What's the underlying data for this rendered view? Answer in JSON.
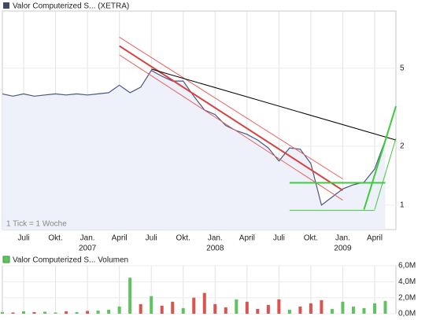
{
  "chart_data": [
    {
      "type": "line",
      "log_scale": true,
      "grid": true,
      "note": "1 Tick = 1 Woche",
      "xlim": [
        "2006-05",
        "2009-06"
      ],
      "ylim": [
        0.75,
        9.8
      ],
      "yticks": [
        1,
        2,
        5
      ],
      "xticks": [
        {
          "value": "2006-07",
          "label": "Juli"
        },
        {
          "value": "2006-10",
          "label": "Okt."
        },
        {
          "value": "2007-01",
          "label": "Jan.",
          "year": "2007"
        },
        {
          "value": "2007-04",
          "label": "April"
        },
        {
          "value": "2007-07",
          "label": "Juli"
        },
        {
          "value": "2007-10",
          "label": "Okt."
        },
        {
          "value": "2008-01",
          "label": "Jan.",
          "year": "2008"
        },
        {
          "value": "2008-04",
          "label": "April"
        },
        {
          "value": "2008-07",
          "label": "Juli"
        },
        {
          "value": "2008-10",
          "label": "Okt."
        },
        {
          "value": "2009-01",
          "label": "Jan.",
          "year": "2009"
        },
        {
          "value": "2009-04",
          "label": "April"
        }
      ],
      "x": [
        "2006-05",
        "2006-06",
        "2006-07",
        "2006-08",
        "2006-09",
        "2006-10",
        "2006-11",
        "2006-12",
        "2007-01",
        "2007-02",
        "2007-03",
        "2007-04",
        "2007-05",
        "2007-06",
        "2007-07",
        "2007-08",
        "2007-09",
        "2007-10",
        "2007-11",
        "2007-12",
        "2008-01",
        "2008-02",
        "2008-03",
        "2008-04",
        "2008-05",
        "2008-06",
        "2008-07",
        "2008-08",
        "2008-09",
        "2008-10",
        "2008-11",
        "2008-12",
        "2009-01",
        "2009-02",
        "2009-03",
        "2009-04",
        "2009-05"
      ],
      "series": [
        {
          "name": "Valor Computerized S... (XETRA)",
          "color": "#4a5680",
          "values": [
            3.7,
            3.6,
            3.7,
            3.6,
            3.65,
            3.7,
            3.65,
            3.7,
            3.65,
            3.7,
            3.75,
            4.1,
            3.75,
            4.0,
            4.87,
            4.55,
            4.3,
            4.3,
            3.6,
            3.06,
            2.9,
            2.55,
            2.4,
            2.3,
            2.15,
            1.96,
            1.68,
            1.96,
            1.93,
            1.63,
            1.0,
            1.1,
            1.21,
            1.27,
            1.31,
            1.53,
            2.15
          ]
        }
      ],
      "trendlines": [
        {
          "color": "#d94040",
          "width": 2,
          "x": [
            "2007-04",
            "2009-01"
          ],
          "values": [
            6.5,
            1.19
          ]
        },
        {
          "color": "#e86060",
          "width": 1,
          "x": [
            "2007-04",
            "2009-01"
          ],
          "values": [
            7.2,
            1.36
          ]
        },
        {
          "color": "#e86060",
          "width": 1,
          "x": [
            "2007-04",
            "2009-01"
          ],
          "values": [
            5.85,
            1.06
          ]
        },
        {
          "color": "#000000",
          "width": 1,
          "x": [
            "2007-07",
            "2009-06"
          ],
          "values": [
            4.95,
            2.15
          ]
        },
        {
          "color": "#3ccc3c",
          "width": 2,
          "x": [
            "2009-03",
            "2009-06"
          ],
          "values": [
            0.95,
            3.2
          ]
        },
        {
          "color": "#3ccc3c",
          "width": 1,
          "x": [
            "2009-04",
            "2009-06"
          ],
          "values": [
            0.95,
            2.2
          ]
        },
        {
          "color": "#3ccc3c",
          "width": 2,
          "x": [
            "2008-08",
            "2009-05"
          ],
          "values": [
            1.3,
            1.3
          ]
        },
        {
          "color": "#3ccc3c",
          "width": 1,
          "x": [
            "2008-08",
            "2009-04"
          ],
          "values": [
            0.94,
            0.94
          ]
        }
      ]
    },
    {
      "type": "bar",
      "xlim": [
        "2006-05",
        "2009-06"
      ],
      "ylim": [
        0,
        6000000
      ],
      "yticks": [
        {
          "value": 0,
          "label": "0,0M"
        },
        {
          "value": 2000000,
          "label": "2,0M"
        },
        {
          "value": 4000000,
          "label": "4,0M"
        },
        {
          "value": 6000000,
          "label": "6,0M"
        }
      ],
      "x": [
        "2006-05",
        "2006-06",
        "2006-07",
        "2006-08",
        "2006-09",
        "2006-10",
        "2006-11",
        "2006-12",
        "2007-01",
        "2007-02",
        "2007-03",
        "2007-04",
        "2007-05",
        "2007-06",
        "2007-07",
        "2007-08",
        "2007-09",
        "2007-10",
        "2007-11",
        "2007-12",
        "2008-01",
        "2008-02",
        "2008-03",
        "2008-04",
        "2008-05",
        "2008-06",
        "2008-07",
        "2008-08",
        "2008-09",
        "2008-10",
        "2008-11",
        "2008-12",
        "2009-01",
        "2009-02",
        "2009-03",
        "2009-04",
        "2009-05"
      ],
      "series": [
        {
          "name": "Valor Computerized S... Volumen",
          "color": "#5fc35f",
          "values": [
            200000,
            150000,
            300000,
            200000,
            250000,
            150000,
            300000,
            200000,
            350000,
            400000,
            500000,
            900000,
            4500000,
            1200000,
            2200000,
            1000000,
            1500000,
            700000,
            2000000,
            2600000,
            1200000,
            800000,
            1800000,
            1500000,
            600000,
            1100000,
            1800000,
            500000,
            900000,
            1300000,
            1700000,
            600000,
            1500000,
            900000,
            700000,
            1300000,
            1600000
          ]
        }
      ],
      "colors": [
        "#5fc35f",
        "#d9534f",
        "#5fc35f",
        "#d9534f",
        "#5fc35f",
        "#5fc35f",
        "#d9534f",
        "#5fc35f",
        "#d9534f",
        "#5fc35f",
        "#5fc35f",
        "#5fc35f",
        "#5fc35f",
        "#d9534f",
        "#5fc35f",
        "#d9534f",
        "#d9534f",
        "#5fc35f",
        "#d9534f",
        "#d9534f",
        "#d9534f",
        "#d9534f",
        "#5fc35f",
        "#d9534f",
        "#d9534f",
        "#d9534f",
        "#d9534f",
        "#5fc35f",
        "#d9534f",
        "#d9534f",
        "#d9534f",
        "#5fc35f",
        "#5fc35f",
        "#5fc35f",
        "#5fc35f",
        "#5fc35f",
        "#5fc35f"
      ]
    }
  ]
}
